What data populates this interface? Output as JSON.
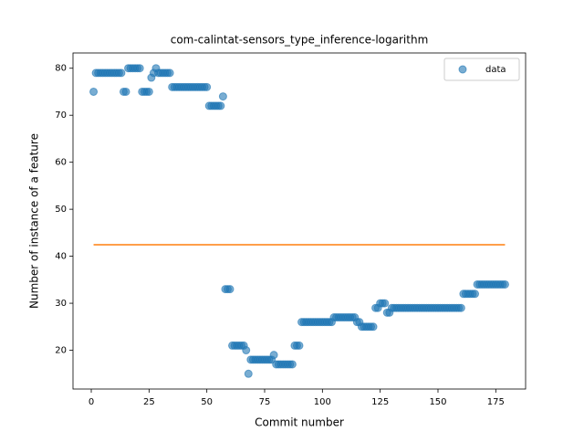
{
  "chart_data": {
    "type": "scatter",
    "title": "com-calintat-sensors_type_inference-logarithm",
    "xlabel": "Commit number",
    "ylabel": "Number of instance of a feature",
    "xlim": [
      -7.9,
      187.9
    ],
    "ylim": [
      11.75,
      83.25
    ],
    "xticks": [
      0,
      25,
      50,
      75,
      100,
      125,
      150,
      175
    ],
    "yticks": [
      20,
      30,
      40,
      50,
      60,
      70,
      80
    ],
    "legend": "upper right",
    "series": [
      {
        "name": "data",
        "color": "#1f77b4",
        "x": [
          1,
          2,
          3,
          4,
          5,
          6,
          7,
          8,
          9,
          10,
          11,
          12,
          13,
          14,
          15,
          16,
          17,
          18,
          19,
          20,
          21,
          22,
          23,
          24,
          25,
          26,
          27,
          28,
          29,
          30,
          31,
          32,
          33,
          34,
          35,
          36,
          37,
          38,
          39,
          40,
          41,
          42,
          43,
          44,
          45,
          46,
          47,
          48,
          49,
          50,
          51,
          52,
          53,
          54,
          55,
          56,
          57,
          58,
          59,
          60,
          61,
          62,
          63,
          64,
          65,
          66,
          67,
          68,
          69,
          70,
          71,
          72,
          73,
          74,
          75,
          76,
          77,
          78,
          79,
          80,
          81,
          82,
          83,
          84,
          85,
          86,
          87,
          88,
          89,
          90,
          91,
          92,
          93,
          94,
          95,
          96,
          97,
          98,
          99,
          100,
          101,
          102,
          103,
          104,
          105,
          106,
          107,
          108,
          109,
          110,
          111,
          112,
          113,
          114,
          115,
          116,
          117,
          118,
          119,
          120,
          121,
          122,
          123,
          124,
          125,
          126,
          127,
          128,
          129,
          130,
          131,
          132,
          133,
          134,
          135,
          136,
          137,
          138,
          139,
          140,
          141,
          142,
          143,
          144,
          145,
          146,
          147,
          148,
          149,
          150,
          151,
          152,
          153,
          154,
          155,
          156,
          157,
          158,
          159,
          160,
          161,
          162,
          163,
          164,
          165,
          166,
          167,
          168,
          169,
          170,
          171,
          172,
          173,
          174,
          175,
          176,
          177,
          178,
          179
        ],
        "values": [
          75,
          79,
          79,
          79,
          79,
          79,
          79,
          79,
          79,
          79,
          79,
          79,
          79,
          75,
          75,
          80,
          80,
          80,
          80,
          80,
          80,
          75,
          75,
          75,
          75,
          78,
          79,
          80,
          79,
          79,
          79,
          79,
          79,
          79,
          76,
          76,
          76,
          76,
          76,
          76,
          76,
          76,
          76,
          76,
          76,
          76,
          76,
          76,
          76,
          76,
          72,
          72,
          72,
          72,
          72,
          72,
          74,
          33,
          33,
          33,
          21,
          21,
          21,
          21,
          21,
          21,
          20,
          15,
          18,
          18,
          18,
          18,
          18,
          18,
          18,
          18,
          18,
          18,
          19,
          17,
          17,
          17,
          17,
          17,
          17,
          17,
          17,
          21,
          21,
          21,
          26,
          26,
          26,
          26,
          26,
          26,
          26,
          26,
          26,
          26,
          26,
          26,
          26,
          26,
          27,
          27,
          27,
          27,
          27,
          27,
          27,
          27,
          27,
          27,
          26,
          26,
          25,
          25,
          25,
          25,
          25,
          25,
          29,
          29,
          30,
          30,
          30,
          28,
          28,
          29,
          29,
          29,
          29,
          29,
          29,
          29,
          29,
          29,
          29,
          29,
          29,
          29,
          29,
          29,
          29,
          29,
          29,
          29,
          29,
          29,
          29,
          29,
          29,
          29,
          29,
          29,
          29,
          29,
          29,
          29,
          32,
          32,
          32,
          32,
          32,
          32,
          34,
          34,
          34,
          34,
          34,
          34,
          34,
          34,
          34,
          34,
          34,
          34,
          34
        ]
      }
    ],
    "reference_line": {
      "value": 42.45,
      "x": [
        1,
        179
      ],
      "color": "#ff7f0e"
    }
  }
}
